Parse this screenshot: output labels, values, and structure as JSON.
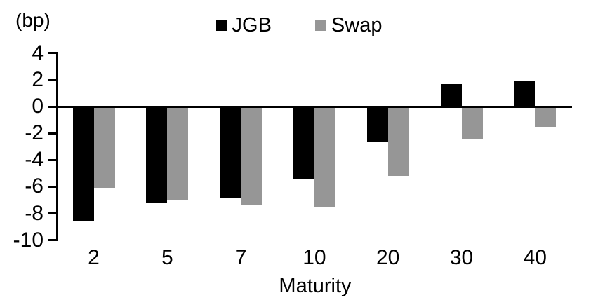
{
  "chart_data": {
    "type": "bar",
    "title": "",
    "categories": [
      "2",
      "5",
      "7",
      "10",
      "20",
      "30",
      "40"
    ],
    "series": [
      {
        "name": "JGB",
        "color": "#000000",
        "values": [
          -8.6,
          -7.2,
          -6.8,
          -5.4,
          -2.7,
          1.7,
          1.9
        ]
      },
      {
        "name": "Swap",
        "color": "#969696",
        "values": [
          -6.1,
          -7.0,
          -7.4,
          -7.5,
          -5.2,
          -2.4,
          -1.5
        ]
      }
    ],
    "xlabel": "Maturity",
    "ylabel": "(bp)",
    "ylim": [
      -10,
      4
    ],
    "yticks": [
      4,
      2,
      0,
      -2,
      -4,
      -6,
      -8,
      -10
    ],
    "ytick_labels": [
      "4",
      "2",
      "0",
      "-2",
      "-4",
      "-6",
      "-8",
      "-10"
    ],
    "baseline": 0,
    "grid": false,
    "legend_position": "top-center",
    "axis_color": "#000000",
    "background_color": "#ffffff"
  }
}
